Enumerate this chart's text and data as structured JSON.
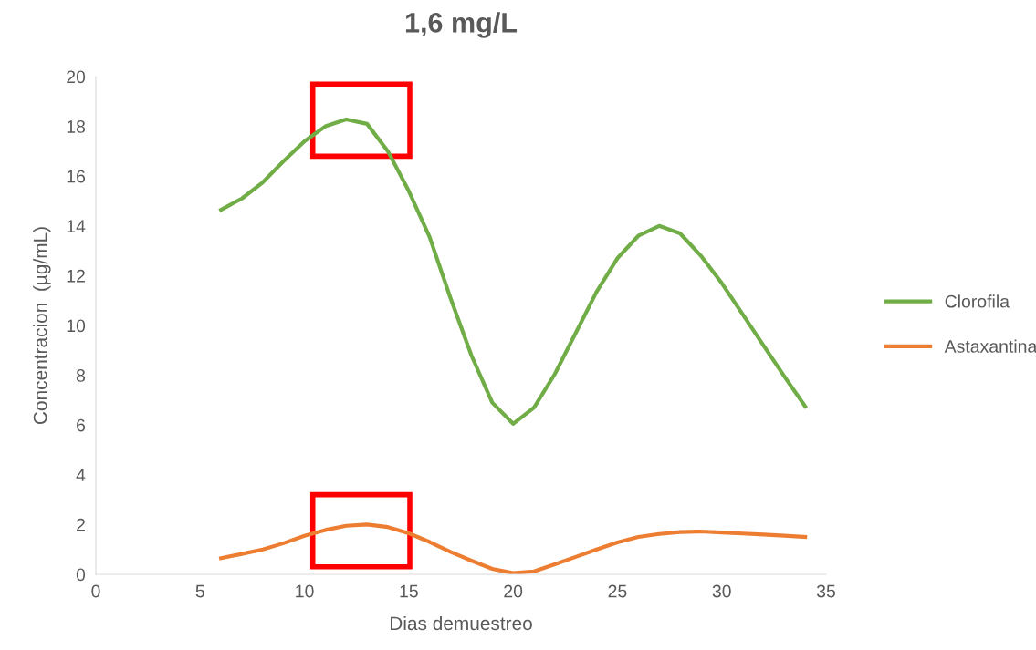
{
  "chart_data": {
    "type": "line",
    "title": "1,6 mg/L",
    "xlabel": "Dias demuestreo",
    "ylabel": "Concentracion  (µg/mL)",
    "xlim": [
      0,
      35
    ],
    "xticks": [
      0,
      5,
      10,
      15,
      20,
      25,
      30,
      35
    ],
    "ylim": [
      0,
      20
    ],
    "yticks": [
      0,
      2,
      4,
      6,
      8,
      10,
      12,
      14,
      16,
      18,
      20
    ],
    "grid": false,
    "legend": "right",
    "marker": "none",
    "line_style": "solid",
    "series": [
      {
        "name": "Clorofila",
        "color": "#70ad47",
        "x": [
          6,
          7,
          8,
          9,
          10,
          11,
          12,
          13,
          14,
          15,
          16,
          17,
          18,
          19,
          20,
          21,
          22,
          23,
          24,
          25,
          26,
          27,
          28,
          29,
          30,
          31,
          32,
          33,
          34
        ],
        "values": [
          14.65,
          15.1,
          15.75,
          16.6,
          17.4,
          18.0,
          18.28,
          18.1,
          17.0,
          15.4,
          13.55,
          11.1,
          8.8,
          6.9,
          6.05,
          6.7,
          8.05,
          9.7,
          11.35,
          12.7,
          13.6,
          14.0,
          13.7,
          12.8,
          11.7,
          10.45,
          9.2,
          7.95,
          6.75
        ]
      },
      {
        "name": "Astaxantina",
        "color": "#ed7d31",
        "x": [
          6,
          7,
          8,
          9,
          10,
          11,
          12,
          13,
          14,
          15,
          16,
          17,
          18,
          19,
          20,
          21,
          22,
          23,
          24,
          25,
          26,
          27,
          28,
          29,
          30,
          31,
          32,
          33,
          34
        ],
        "values": [
          0.65,
          0.82,
          1.0,
          1.25,
          1.55,
          1.78,
          1.95,
          2.0,
          1.9,
          1.65,
          1.3,
          0.9,
          0.55,
          0.22,
          0.05,
          0.12,
          0.4,
          0.7,
          1.0,
          1.28,
          1.5,
          1.62,
          1.7,
          1.72,
          1.68,
          1.64,
          1.6,
          1.55,
          1.5
        ]
      }
    ]
  }
}
